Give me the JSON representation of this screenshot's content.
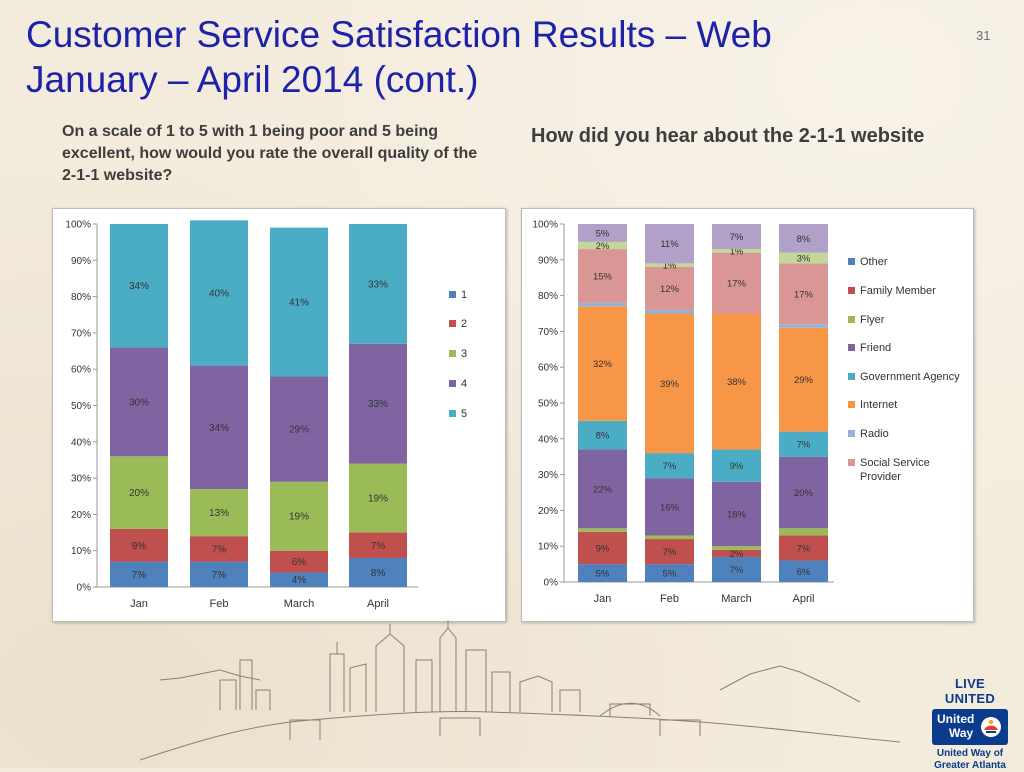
{
  "slide": {
    "title_line1": "Customer Service Satisfaction Results – Web",
    "title_line2": "January – April 2014 (cont.)",
    "page_number": "31"
  },
  "left_question": "On a scale of 1 to 5 with 1 being poor and 5 being excellent, how would you rate the overall quality of the 2-1-1 website?",
  "right_question": "How did you hear about the 2-1-1 website",
  "logo": {
    "top": "LIVE UNITED",
    "badge_line1": "United",
    "badge_line2": "Way",
    "bottom_line1": "United Way of",
    "bottom_line2": "Greater Atlanta"
  },
  "chart_data": [
    {
      "type": "bar",
      "stacked": true,
      "normalized": true,
      "categories": [
        "Jan",
        "Feb",
        "March",
        "April"
      ],
      "yticks": [
        "0%",
        "10%",
        "20%",
        "30%",
        "40%",
        "50%",
        "60%",
        "70%",
        "80%",
        "90%",
        "100%"
      ],
      "ylim": [
        0,
        100
      ],
      "legend_position": "right",
      "series": [
        {
          "name": "1",
          "color": "#4f81bd",
          "values": [
            7,
            7,
            4,
            8
          ],
          "labels": [
            "7%",
            "7%",
            "4%",
            "8%"
          ]
        },
        {
          "name": "2",
          "color": "#c0504d",
          "values": [
            9,
            7,
            6,
            7
          ],
          "labels": [
            "9%",
            "7%",
            "6%",
            "7%"
          ]
        },
        {
          "name": "3",
          "color": "#9bbb59",
          "values": [
            20,
            13,
            19,
            19
          ],
          "labels": [
            "20%",
            "13%",
            "19%",
            "19%"
          ]
        },
        {
          "name": "4",
          "color": "#8064a2",
          "values": [
            30,
            34,
            29,
            33
          ],
          "labels": [
            "30%",
            "34%",
            "29%",
            "33%"
          ]
        },
        {
          "name": "5",
          "color": "#4bacc6",
          "values": [
            34,
            40,
            41,
            33
          ],
          "labels": [
            "34%",
            "40%",
            "41%",
            "33%"
          ]
        }
      ]
    },
    {
      "type": "bar",
      "stacked": true,
      "normalized": true,
      "categories": [
        "Jan",
        "Feb",
        "March",
        "April"
      ],
      "yticks": [
        "0%",
        "10%",
        "20%",
        "30%",
        "40%",
        "50%",
        "60%",
        "70%",
        "80%",
        "90%",
        "100%"
      ],
      "ylim": [
        0,
        100
      ],
      "legend_position": "right",
      "series": [
        {
          "name": "Other",
          "color": "#4f81bd",
          "values": [
            5,
            5,
            7,
            6
          ],
          "labels": [
            "5%",
            "5%",
            "7%",
            "6%"
          ]
        },
        {
          "name": "Family Member",
          "color": "#c0504d",
          "values": [
            9,
            7,
            2,
            7
          ],
          "labels": [
            "9%",
            "7%",
            "2%",
            "7%"
          ]
        },
        {
          "name": "Flyer",
          "color": "#9bbb59",
          "values": [
            1,
            1,
            1,
            2
          ],
          "labels": [
            "",
            "",
            "",
            ""
          ]
        },
        {
          "name": "Friend",
          "color": "#8064a2",
          "values": [
            22,
            16,
            18,
            20
          ],
          "labels": [
            "22%",
            "16%",
            "18%",
            "20%"
          ]
        },
        {
          "name": "Government Agency",
          "color": "#4bacc6",
          "values": [
            8,
            7,
            9,
            7
          ],
          "labels": [
            "8%",
            "7%",
            "9%",
            "7%"
          ]
        },
        {
          "name": "Internet",
          "color": "#f79646",
          "values": [
            32,
            39,
            38,
            29
          ],
          "labels": [
            "32%",
            "39%",
            "38%",
            "29%"
          ]
        },
        {
          "name": "Radio",
          "color": "#95b3d7",
          "values": [
            1,
            1,
            0,
            1
          ],
          "labels": [
            "",
            "",
            "",
            ""
          ]
        },
        {
          "name": "Social Service Provider",
          "color": "#da9694",
          "values": [
            15,
            12,
            17,
            17
          ],
          "labels": [
            "15%",
            "12%",
            "17%",
            "17%"
          ]
        },
        {
          "name": "",
          "color": "#c4d79b",
          "values": [
            2,
            1,
            1,
            3
          ],
          "labels": [
            "2%",
            "1%",
            "1%",
            "3%"
          ]
        },
        {
          "name": "",
          "color": "#b1a0c7",
          "values": [
            5,
            11,
            7,
            8
          ],
          "labels": [
            "5%",
            "11%",
            "7%",
            "8%"
          ]
        }
      ]
    }
  ]
}
